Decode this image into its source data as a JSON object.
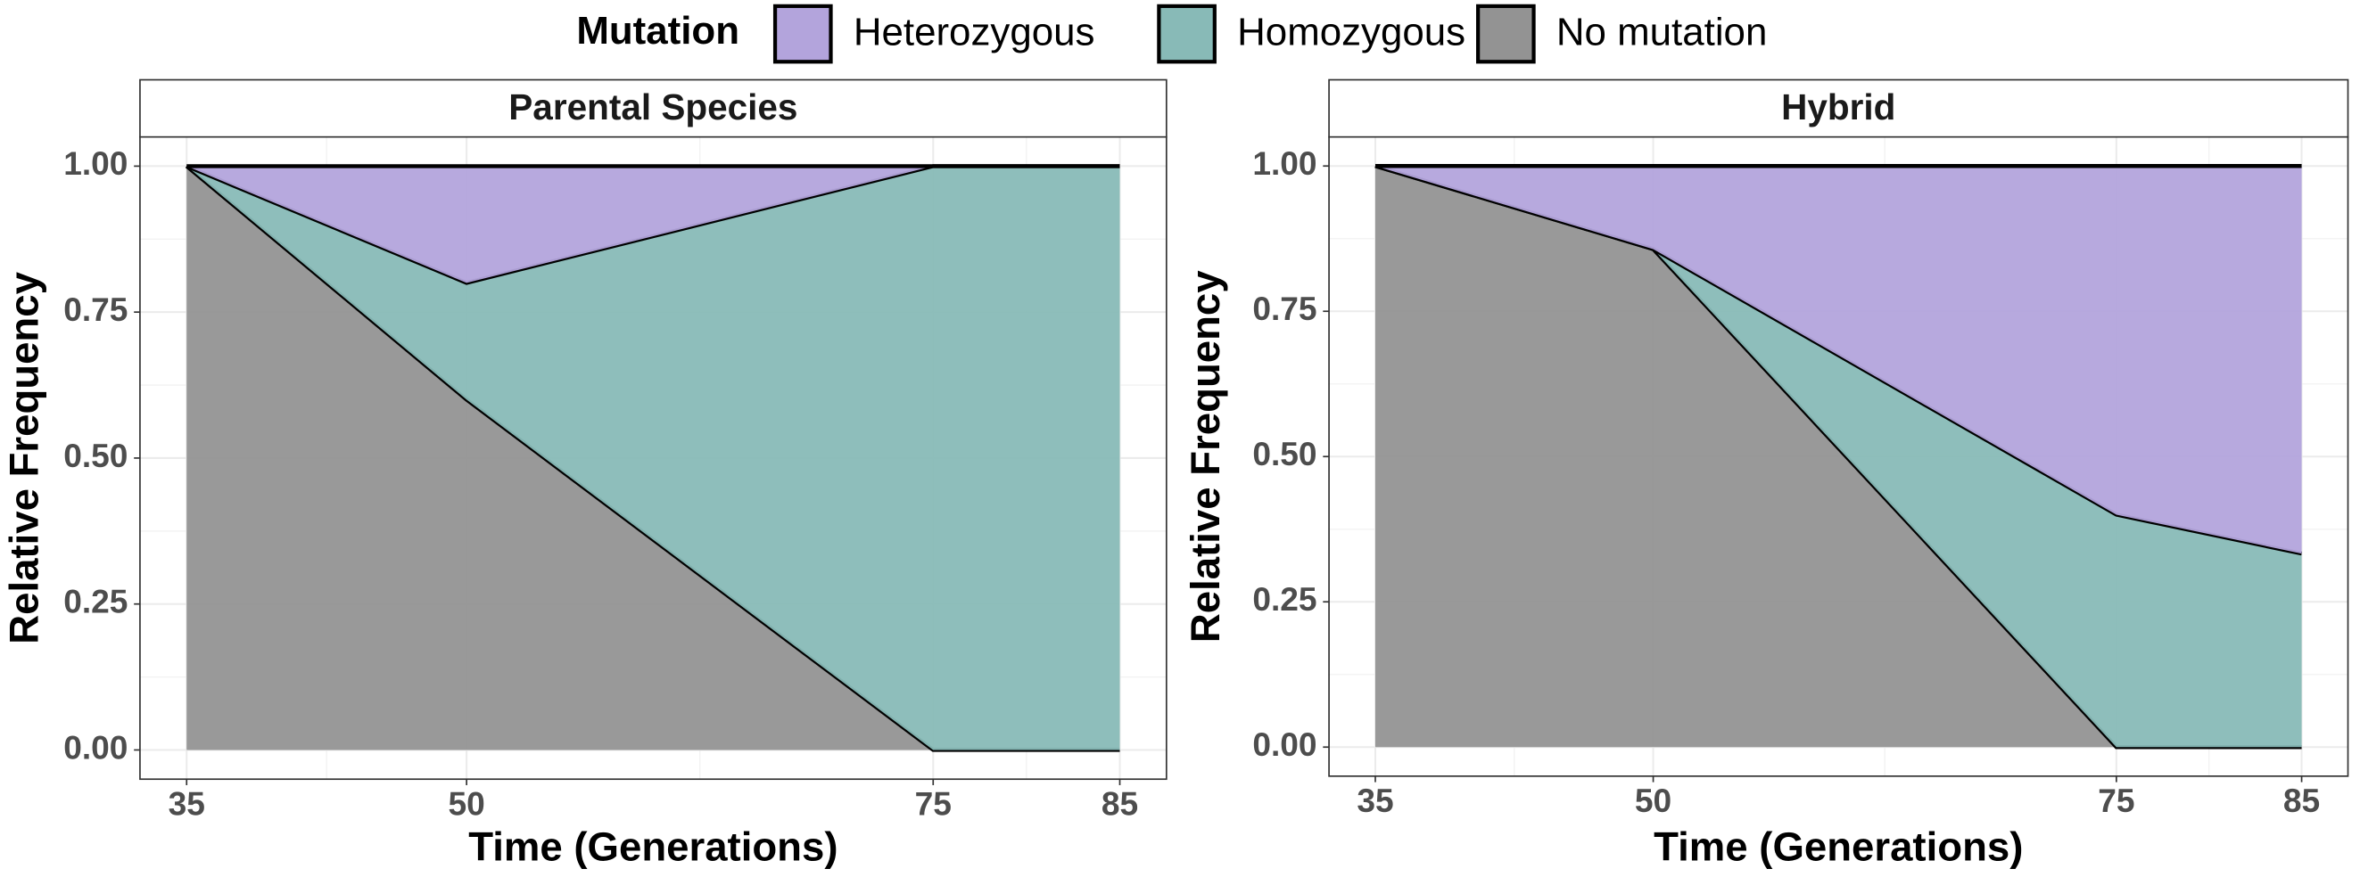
{
  "legend_title": "Mutation",
  "chart_data": [
    {
      "type": "stacked-area",
      "title": "Parental Species",
      "x_label": "Time (Generations)",
      "y_label": "Relative Frequency",
      "x": [
        35,
        50,
        75,
        85
      ],
      "xlim": [
        32.5,
        87.5
      ],
      "xticks": [
        35,
        50,
        75,
        85
      ],
      "ylim": [
        -0.05,
        1.05
      ],
      "yticks": [
        {
          "value": 0,
          "label": "0.00"
        },
        {
          "value": 0.25,
          "label": "0.25"
        },
        {
          "value": 0.5,
          "label": "0.50"
        },
        {
          "value": 0.75,
          "label": "0.75"
        },
        {
          "value": 1,
          "label": "1.00"
        }
      ],
      "grid": true,
      "series": [
        {
          "name": "Heterozygous",
          "color": "#b3a4dc",
          "values": [
            0,
            0.2,
            0,
            0
          ]
        },
        {
          "name": "Homozygous",
          "color": "#88bab7",
          "values": [
            0,
            0.2,
            1,
            1
          ]
        },
        {
          "name": "No mutation",
          "color": "#939393",
          "values": [
            1,
            0.6,
            0,
            0
          ]
        }
      ]
    },
    {
      "type": "stacked-area",
      "title": "Hybrid",
      "x_label": "Time (Generations)",
      "y_label": "Relative Frequency",
      "x": [
        35,
        50,
        75,
        85
      ],
      "xlim": [
        32.5,
        87.5
      ],
      "xticks": [
        35,
        50,
        75,
        85
      ],
      "ylim": [
        -0.05,
        1.05
      ],
      "yticks": [
        {
          "value": 0,
          "label": "0.00"
        },
        {
          "value": 0.25,
          "label": "0.25"
        },
        {
          "value": 0.5,
          "label": "0.50"
        },
        {
          "value": 0.75,
          "label": "0.75"
        },
        {
          "value": 1,
          "label": "1.00"
        }
      ],
      "grid": true,
      "series": [
        {
          "name": "Heterozygous",
          "color": "#b3a4dc",
          "values": [
            0,
            0.143,
            0.6,
            0.667
          ]
        },
        {
          "name": "Homozygous",
          "color": "#88bab7",
          "values": [
            0,
            0,
            0.4,
            0.333
          ]
        },
        {
          "name": "No mutation",
          "color": "#939393",
          "values": [
            1,
            0.857,
            0,
            0
          ]
        }
      ]
    }
  ]
}
